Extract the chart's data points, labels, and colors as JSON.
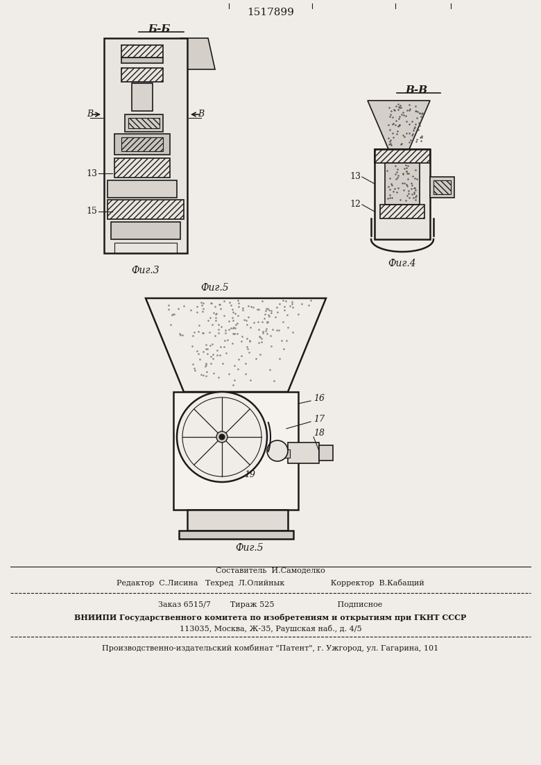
{
  "patent_number": "1517899",
  "bg_color": "#f0ede8",
  "line_color": "#1a1a1a",
  "hatch_color": "#1a1a1a",
  "fig3_label": "Фиг.3",
  "fig4_label": "Фиг.4",
  "fig5_label": "Фиг.5",
  "section_bb": "Б-Б",
  "section_vv": "В-В",
  "label_13a": "13",
  "label_15": "15",
  "label_13b": "13",
  "label_12": "12",
  "label_16": "16",
  "label_17": "17",
  "label_18": "18",
  "label_19": "19",
  "footer_line1": "Составитель  И.Самоделко",
  "footer_line2": "Редактор  С.Лисина   Техред  Л.Олийнык                   Корректор  В.Кабащий",
  "footer_line3": "Заказ 6515/7        Тираж 525                          Подписное",
  "footer_line4": "ВНИИПИ Государственного комитета по изобретениям и открытиям при ГКНТ СССР",
  "footer_line5": "113035, Москва, Ж-35, Раушская наб., д. 4/5",
  "footer_line6": "Производственно-издательский комбинат \"Патент\", г. Ужгород, ул. Гагарина, 101"
}
